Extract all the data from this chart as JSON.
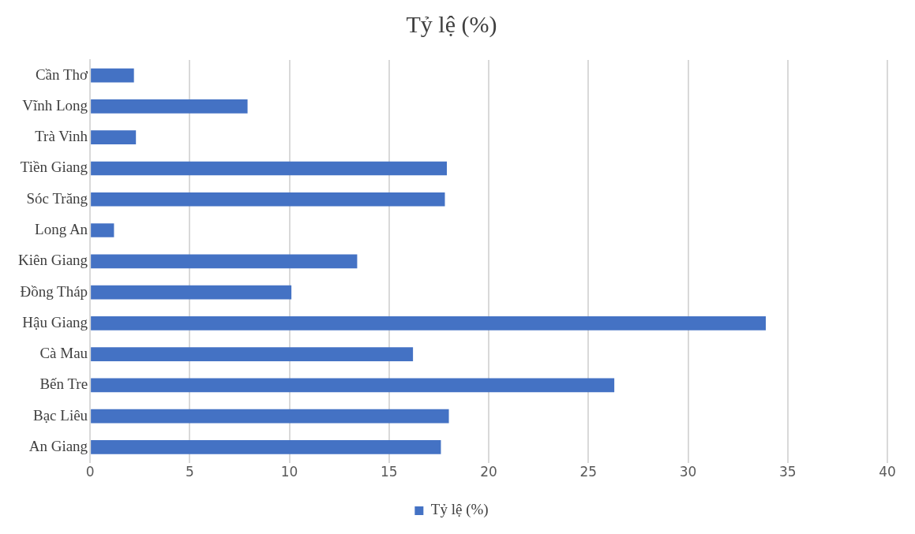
{
  "chart_data": {
    "type": "bar",
    "orientation": "horizontal",
    "title": "Tỷ lệ (%)",
    "categories": [
      "Cần Thơ",
      "Vĩnh Long",
      "Trà Vinh",
      "Tiền Giang",
      "Sóc Trăng",
      "Long An",
      "Kiên Giang",
      "Đồng Tháp",
      "Hậu Giang",
      "Cà Mau",
      "Bến Tre",
      "Bạc Liêu",
      "An Giang"
    ],
    "series": [
      {
        "name": "Tỷ lệ (%)",
        "color": "#4472c4",
        "values": [
          2.2,
          7.9,
          2.3,
          17.9,
          17.8,
          1.2,
          13.4,
          10.1,
          33.9,
          16.2,
          26.3,
          18.0,
          17.6
        ]
      }
    ],
    "xlim": [
      0,
      40
    ],
    "xticks": [
      0,
      5,
      10,
      15,
      20,
      25,
      30,
      35,
      40
    ],
    "grid": "x",
    "legend": "bottom"
  }
}
